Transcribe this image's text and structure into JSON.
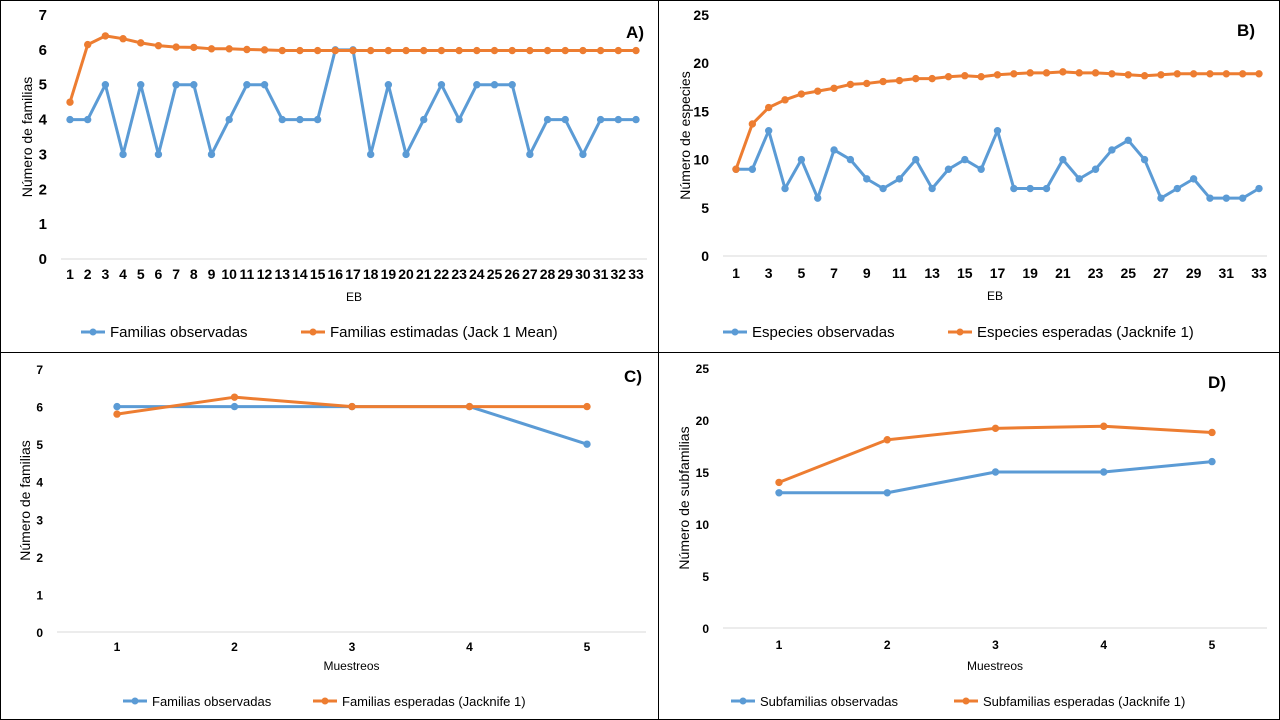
{
  "colors": {
    "observed": "#5B9BD5",
    "estimated": "#ED7D31",
    "axis": "#D9D9D9"
  },
  "chart_data": [
    {
      "id": "A",
      "type": "line",
      "panel_label": "A)",
      "xlabel": "EB",
      "ylabel": "Número de familias",
      "categories": [
        "1",
        "2",
        "3",
        "4",
        "5",
        "6",
        "7",
        "8",
        "9",
        "10",
        "11",
        "12",
        "13",
        "14",
        "15",
        "16",
        "17",
        "18",
        "19",
        "20",
        "21",
        "22",
        "23",
        "24",
        "25",
        "26",
        "27",
        "28",
        "29",
        "30",
        "31",
        "32",
        "33"
      ],
      "ylim": [
        0,
        7
      ],
      "yticks": [
        0,
        1,
        2,
        3,
        4,
        5,
        6,
        7
      ],
      "markers": true,
      "series": [
        {
          "name": "Familias observadas",
          "color": "#5B9BD5",
          "values": [
            4,
            4,
            5,
            3,
            5,
            3,
            5,
            5,
            3,
            4,
            5,
            5,
            4,
            4,
            4,
            6,
            6,
            3,
            5,
            3,
            4,
            5,
            4,
            5,
            5,
            5,
            3,
            4,
            4,
            3,
            4,
            4,
            4
          ]
        },
        {
          "name": "Familias estimadas (Jack 1 Mean)",
          "color": "#ED7D31",
          "values": [
            4.5,
            6.15,
            6.4,
            6.32,
            6.2,
            6.12,
            6.08,
            6.07,
            6.03,
            6.03,
            6.01,
            6.0,
            5.98,
            5.98,
            5.98,
            5.98,
            5.98,
            5.98,
            5.98,
            5.98,
            5.98,
            5.98,
            5.98,
            5.98,
            5.98,
            5.98,
            5.98,
            5.98,
            5.98,
            5.98,
            5.98,
            5.98,
            5.98
          ]
        }
      ]
    },
    {
      "id": "B",
      "type": "line",
      "panel_label": "B)",
      "xlabel": "EB",
      "ylabel": "Número de especies",
      "categories": [
        "1",
        "2",
        "3",
        "4",
        "5",
        "6",
        "7",
        "8",
        "9",
        "10",
        "11",
        "12",
        "13",
        "14",
        "15",
        "16",
        "17",
        "18",
        "19",
        "20",
        "21",
        "22",
        "23",
        "24",
        "25",
        "26",
        "27",
        "28",
        "29",
        "30",
        "31",
        "32",
        "33"
      ],
      "xtick_labels": [
        "1",
        "",
        "3",
        "",
        "5",
        "",
        "7",
        "",
        "9",
        "",
        "11",
        "",
        "13",
        "",
        "15",
        "",
        "17",
        "",
        "19",
        "",
        "21",
        "",
        "23",
        "",
        "25",
        "",
        "27",
        "",
        "29",
        "",
        "31",
        "",
        "33"
      ],
      "ylim": [
        0,
        25
      ],
      "yticks": [
        0,
        5,
        10,
        15,
        20,
        25
      ],
      "markers": true,
      "series": [
        {
          "name": "Especies observadas",
          "color": "#5B9BD5",
          "values": [
            9,
            9,
            13,
            7,
            10,
            6,
            11,
            10,
            8,
            7,
            8,
            10,
            7,
            9,
            10,
            9,
            13,
            7,
            7,
            7,
            10,
            8,
            9,
            11,
            12,
            10,
            6,
            7,
            8,
            6,
            6,
            6,
            7
          ]
        },
        {
          "name": "Especies esperadas (Jacknife 1)",
          "color": "#ED7D31",
          "values": [
            9,
            13.7,
            15.4,
            16.2,
            16.8,
            17.1,
            17.4,
            17.8,
            17.9,
            18.1,
            18.2,
            18.4,
            18.4,
            18.6,
            18.7,
            18.6,
            18.8,
            18.9,
            19.0,
            19.0,
            19.1,
            19.0,
            19.0,
            18.9,
            18.8,
            18.7,
            18.8,
            18.9,
            18.9,
            18.9,
            18.9,
            18.9,
            18.9
          ]
        }
      ]
    },
    {
      "id": "C",
      "type": "line",
      "panel_label": "C)",
      "xlabel": "Muestreos",
      "ylabel": "Número de familias",
      "categories": [
        "1",
        "2",
        "3",
        "4",
        "5"
      ],
      "ylim": [
        0,
        7
      ],
      "yticks": [
        0,
        1,
        2,
        3,
        4,
        5,
        6,
        7
      ],
      "markers": true,
      "series": [
        {
          "name": "Familias observadas",
          "color": "#5B9BD5",
          "values": [
            6,
            6,
            6,
            6,
            5
          ]
        },
        {
          "name": "Familias esperadas (Jacknife 1)",
          "color": "#ED7D31",
          "values": [
            5.8,
            6.25,
            6,
            6,
            6
          ]
        }
      ]
    },
    {
      "id": "D",
      "type": "line",
      "panel_label": "D)",
      "xlabel": "Muestreos",
      "ylabel": "Número de subfamilias",
      "categories": [
        "1",
        "2",
        "3",
        "4",
        "5"
      ],
      "ylim": [
        0,
        25
      ],
      "yticks": [
        0,
        5,
        10,
        15,
        20,
        25
      ],
      "markers": true,
      "series": [
        {
          "name": "Subfamilias observadas",
          "color": "#5B9BD5",
          "values": [
            13,
            13,
            15,
            15,
            16
          ]
        },
        {
          "name": "Subfamilias esperadas (Jacknife 1)",
          "color": "#ED7D31",
          "values": [
            14,
            18.1,
            19.2,
            19.4,
            18.8
          ]
        }
      ]
    }
  ]
}
